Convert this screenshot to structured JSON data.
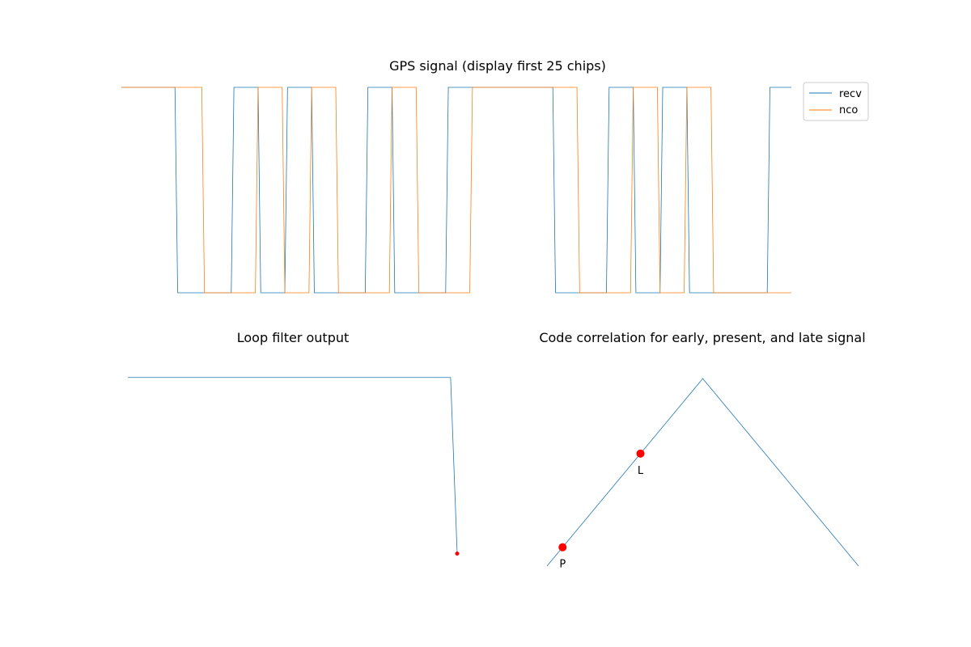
{
  "chart_data": [
    {
      "type": "line",
      "title": "GPS signal (display first 25 chips)",
      "xlabel": "",
      "ylabel": "",
      "axes_visible": false,
      "grid": false,
      "legend_position": "upper-right",
      "ylim": [
        -1,
        1
      ],
      "series": [
        {
          "name": "recv",
          "color": "#1f77b4",
          "x": [
            0,
            2,
            2.1,
            4.1,
            4.2,
            5.1,
            5.2,
            6.1,
            6.2,
            7.1,
            7.2,
            9.1,
            9.2,
            10.1,
            10.2,
            12.1,
            12.2,
            16.1,
            16.2,
            18.1,
            18.2,
            19.1,
            19.2,
            20.1,
            20.2,
            21.1,
            21.2,
            24.1,
            24.2,
            25
          ],
          "y": [
            1,
            1,
            -1,
            -1,
            1,
            1,
            -1,
            -1,
            1,
            1,
            -1,
            -1,
            1,
            1,
            -1,
            -1,
            1,
            1,
            -1,
            -1,
            1,
            1,
            -1,
            -1,
            1,
            1,
            -1,
            -1,
            1,
            1
          ]
        },
        {
          "name": "nco",
          "color": "#ff7f0e",
          "x": [
            0,
            3,
            3.1,
            5,
            5.1,
            6,
            6.1,
            7,
            7.1,
            8,
            8.1,
            10,
            10.1,
            11,
            11.1,
            13,
            13.1,
            17,
            17.1,
            19,
            19.1,
            20,
            20.1,
            21,
            21.1,
            22,
            22.1,
            25
          ],
          "y": [
            1,
            1,
            -1,
            -1,
            1,
            1,
            -1,
            -1,
            1,
            1,
            -1,
            -1,
            1,
            1,
            -1,
            -1,
            1,
            1,
            -1,
            -1,
            1,
            1,
            -1,
            -1,
            1,
            1,
            -1,
            -1
          ]
        }
      ]
    },
    {
      "type": "line",
      "title": "Loop filter output",
      "xlabel": "",
      "ylabel": "",
      "axes_visible": false,
      "grid": false,
      "ylim": [
        -1.2,
        0.1
      ],
      "series": [
        {
          "color": "#1f77b4",
          "x": [
            0,
            49,
            50
          ],
          "y": [
            0,
            0,
            -1
          ]
        }
      ],
      "markers": [
        {
          "x": 50,
          "y": -1,
          "color": "#ff0000",
          "label": "",
          "size": "small"
        }
      ]
    },
    {
      "type": "line",
      "title": "Code correlation for early, present, and late signal",
      "xlabel": "",
      "ylabel": "",
      "axes_visible": false,
      "grid": false,
      "ylim": [
        -0.1,
        1.1
      ],
      "series": [
        {
          "color": "#1f77b4",
          "x": [
            -1,
            0,
            1
          ],
          "y": [
            0,
            1,
            0
          ]
        }
      ],
      "markers": [
        {
          "x": -0.9,
          "y": 0.1,
          "color": "#ff0000",
          "label": "P",
          "size": "large"
        },
        {
          "x": -0.4,
          "y": 0.6,
          "color": "#ff0000",
          "label": "L",
          "size": "large"
        }
      ]
    }
  ]
}
